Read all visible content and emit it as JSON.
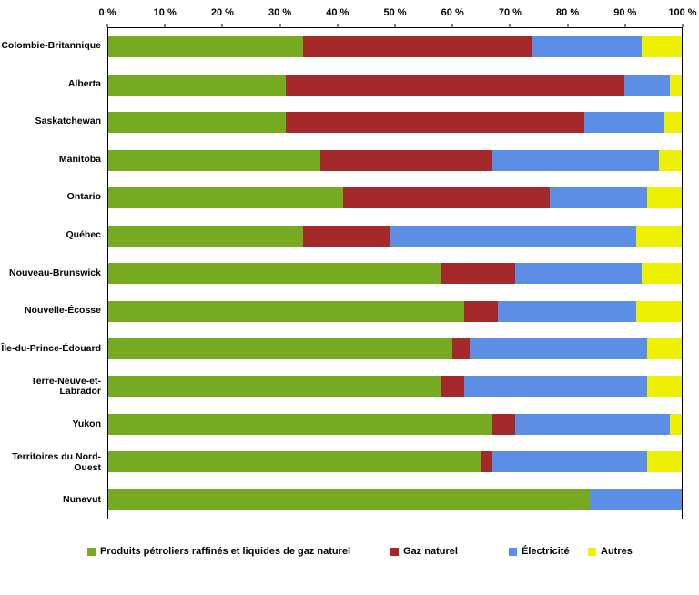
{
  "chart_data": {
    "type": "bar",
    "orientation": "horizontal",
    "stacked": true,
    "title": "",
    "xlabel": "",
    "ylabel": "",
    "xlim": [
      0,
      100
    ],
    "grid": false,
    "legend_position": "bottom",
    "x_ticks": [
      "0 %",
      "10 %",
      "20 %",
      "30 %",
      "40 %",
      "50 %",
      "60 %",
      "70 %",
      "80 %",
      "90 %",
      "100 %"
    ],
    "categories": [
      "Colombie-Britannique",
      "Alberta",
      "Saskatchewan",
      "Manitoba",
      "Ontario",
      "Québec",
      "Nouveau-Brunswick",
      "Nouvelle-Écosse",
      "Île-du-Prince-Édouard",
      "Terre-Neuve-et-Labrador",
      "Yukon",
      "Territoires du Nord-Ouest",
      "Nunavut"
    ],
    "series": [
      {
        "name": "Produits pétroliers raffinés et liquides de gaz naturel",
        "color": "#76AB21",
        "values": [
          34,
          31,
          31,
          37,
          41,
          34,
          58,
          62,
          60,
          58,
          67,
          65,
          84
        ]
      },
      {
        "name": "Gaz naturel",
        "color": "#A3292B",
        "values": [
          40,
          59,
          52,
          30,
          36,
          15,
          13,
          6,
          3,
          4,
          4,
          2,
          0
        ]
      },
      {
        "name": "Électricité",
        "color": "#5C8EE6",
        "values": [
          19,
          8,
          14,
          29,
          17,
          43,
          22,
          24,
          31,
          32,
          27,
          27,
          16
        ]
      },
      {
        "name": "Autres",
        "color": "#EDF000",
        "values": [
          7,
          2,
          3,
          4,
          6,
          8,
          7,
          8,
          6,
          6,
          2,
          6,
          0
        ]
      }
    ]
  }
}
